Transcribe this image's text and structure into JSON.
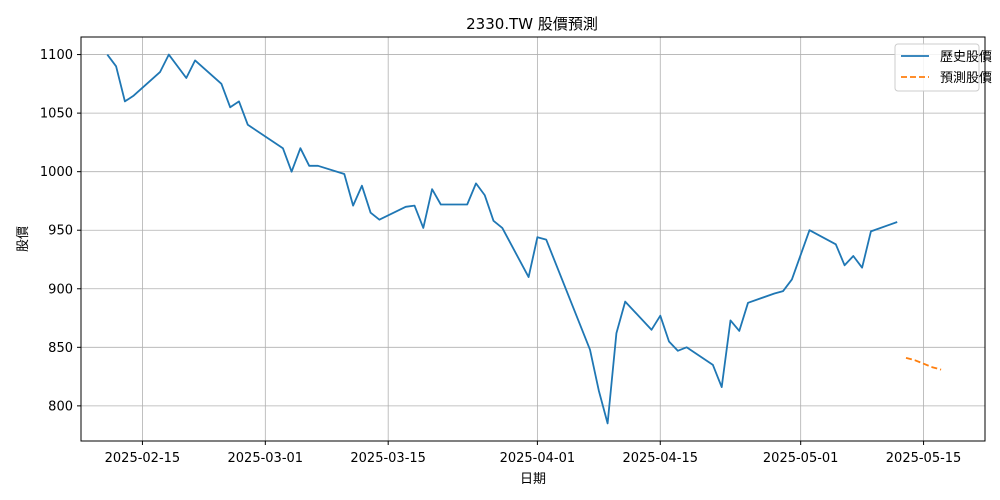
{
  "chart_data": {
    "type": "line",
    "title": "2330.TW 股價預測",
    "xlabel": "日期",
    "ylabel": "股價",
    "x_range": [
      "2025-02-08",
      "2025-05-22"
    ],
    "ylim": [
      770,
      1115
    ],
    "x_ticks": [
      "2025-02-15",
      "2025-03-01",
      "2025-03-15",
      "2025-04-01",
      "2025-04-15",
      "2025-05-01",
      "2025-05-15"
    ],
    "y_ticks": [
      800,
      850,
      900,
      950,
      1000,
      1050,
      1100
    ],
    "grid": true,
    "legend_position": "top-right",
    "series": [
      {
        "name": "歷史股價",
        "color": "#1f77b4",
        "style": "solid",
        "points": [
          [
            "2025-02-11",
            1100
          ],
          [
            "2025-02-12",
            1090
          ],
          [
            "2025-02-13",
            1060
          ],
          [
            "2025-02-14",
            1065
          ],
          [
            "2025-02-17",
            1085
          ],
          [
            "2025-02-18",
            1100
          ],
          [
            "2025-02-20",
            1080
          ],
          [
            "2025-02-21",
            1095
          ],
          [
            "2025-02-24",
            1075
          ],
          [
            "2025-02-25",
            1055
          ],
          [
            "2025-02-26",
            1060
          ],
          [
            "2025-02-27",
            1040
          ],
          [
            "2025-03-03",
            1020
          ],
          [
            "2025-03-04",
            1000
          ],
          [
            "2025-03-05",
            1020
          ],
          [
            "2025-03-06",
            1005
          ],
          [
            "2025-03-07",
            1005
          ],
          [
            "2025-03-10",
            998
          ],
          [
            "2025-03-11",
            971
          ],
          [
            "2025-03-12",
            988
          ],
          [
            "2025-03-13",
            965
          ],
          [
            "2025-03-14",
            959
          ],
          [
            "2025-03-17",
            970
          ],
          [
            "2025-03-18",
            971
          ],
          [
            "2025-03-19",
            952
          ],
          [
            "2025-03-20",
            985
          ],
          [
            "2025-03-21",
            972
          ],
          [
            "2025-03-24",
            972
          ],
          [
            "2025-03-25",
            990
          ],
          [
            "2025-03-26",
            980
          ],
          [
            "2025-03-27",
            958
          ],
          [
            "2025-03-28",
            952
          ],
          [
            "2025-03-31",
            910
          ],
          [
            "2025-04-01",
            944
          ],
          [
            "2025-04-02",
            942
          ],
          [
            "2025-04-07",
            848
          ],
          [
            "2025-04-08",
            813
          ],
          [
            "2025-04-09",
            785
          ],
          [
            "2025-04-10",
            862
          ],
          [
            "2025-04-11",
            889
          ],
          [
            "2025-04-14",
            865
          ],
          [
            "2025-04-15",
            877
          ],
          [
            "2025-04-16",
            855
          ],
          [
            "2025-04-17",
            847
          ],
          [
            "2025-04-18",
            850
          ],
          [
            "2025-04-21",
            835
          ],
          [
            "2025-04-22",
            816
          ],
          [
            "2025-04-23",
            873
          ],
          [
            "2025-04-24",
            864
          ],
          [
            "2025-04-25",
            888
          ],
          [
            "2025-04-28",
            896
          ],
          [
            "2025-04-29",
            898
          ],
          [
            "2025-04-30",
            908
          ],
          [
            "2025-05-02",
            950
          ],
          [
            "2025-05-05",
            938
          ],
          [
            "2025-05-06",
            920
          ],
          [
            "2025-05-07",
            928
          ],
          [
            "2025-05-08",
            918
          ],
          [
            "2025-05-09",
            949
          ],
          [
            "2025-05-12",
            957
          ]
        ]
      },
      {
        "name": "預測股價",
        "color": "#ff7f0e",
        "style": "dashed",
        "points": [
          [
            "2025-05-13",
            841
          ],
          [
            "2025-05-14",
            839
          ],
          [
            "2025-05-15",
            836
          ],
          [
            "2025-05-16",
            833
          ],
          [
            "2025-05-17",
            831
          ]
        ]
      }
    ]
  }
}
